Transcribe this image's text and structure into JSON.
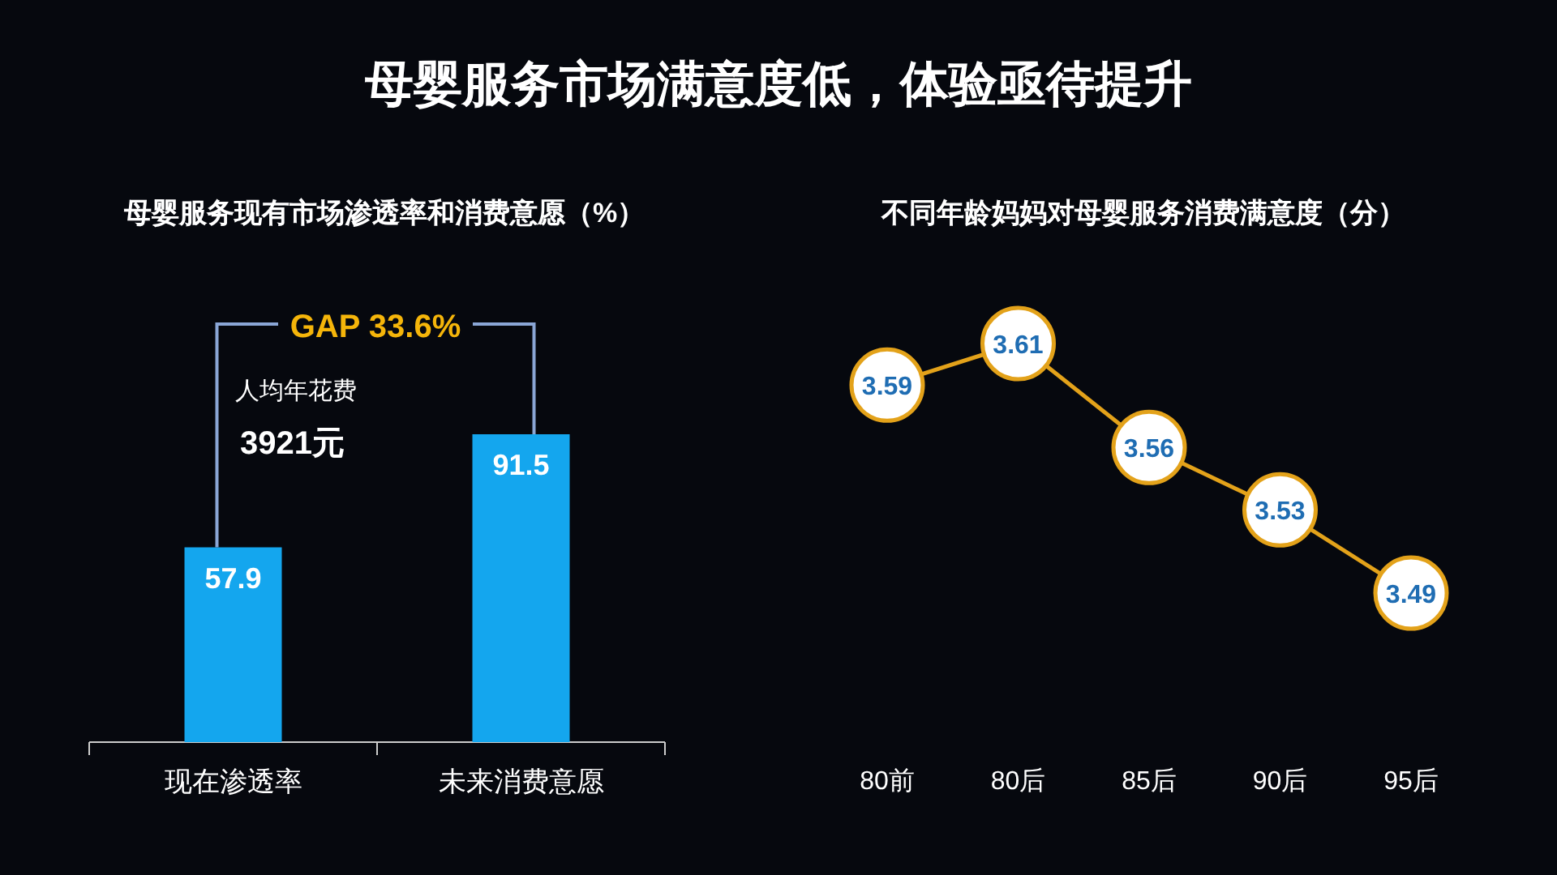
{
  "chart_data": [
    {
      "type": "bar",
      "title": "母婴服务市场满意度低，体验亟待提升",
      "subtitle": "母婴服务现有市场渗透率和消费意愿（%）",
      "categories": [
        "现在渗透率",
        "未来消费意愿"
      ],
      "values": [
        57.9,
        91.5
      ],
      "color": "#14a6ee",
      "data_labels": true,
      "annotations": [
        "GAP 33.6%",
        "人均年花费",
        "3921元"
      ]
    },
    {
      "type": "line",
      "title": "不同年龄妈妈对母婴服务消费满意度（分）",
      "categories": [
        "80前",
        "80后",
        "85后",
        "90后",
        "95后"
      ],
      "values": [
        3.59,
        3.61,
        3.56,
        3.53,
        3.49
      ],
      "color": "#e3a21a",
      "marker": "circle",
      "data_labels": true
    }
  ]
}
